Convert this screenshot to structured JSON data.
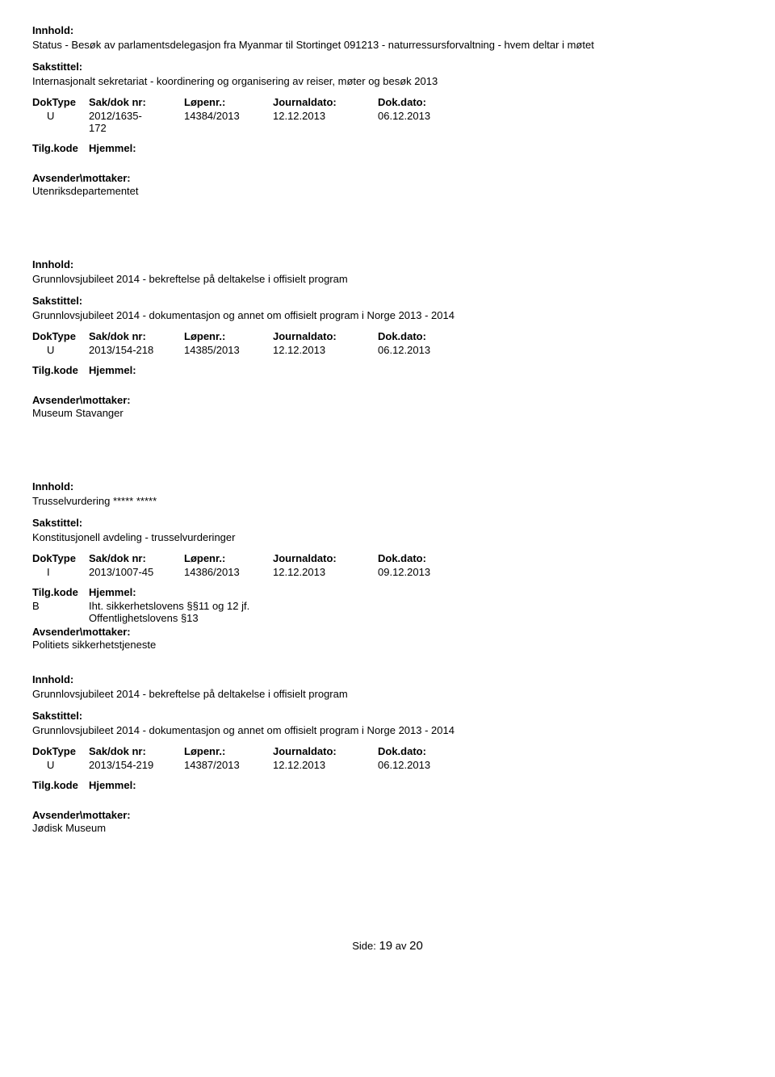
{
  "labels": {
    "innhold": "Innhold:",
    "sakstittel": "Sakstittel:",
    "doktype": "DokType",
    "saknr": "Sak/dok nr:",
    "lopenr": "Løpenr.:",
    "journaldato": "Journaldato:",
    "dokdato": "Dok.dato:",
    "tilgkode": "Tilg.kode",
    "hjemmel": "Hjemmel:",
    "avsender": "Avsender\\mottaker:"
  },
  "records": [
    {
      "innhold": "Status - Besøk av parlamentsdelegasjon fra Myanmar til Stortinget 091213 - naturressursforvaltning - hvem deltar i møtet",
      "sakstittel": "Internasjonalt sekretariat - koordinering og organisering av reiser, møter og besøk 2013",
      "doktype": "U",
      "saknr": "2012/1635-172",
      "saknr_multiline": true,
      "lopenr": "14384/2013",
      "journaldato": "12.12.2013",
      "dokdato": "06.12.2013",
      "hjemmel_code": "",
      "hjemmel_text": "",
      "avsender": "Utenriksdepartementet",
      "show_separator_after": true
    },
    {
      "innhold": "Grunnlovsjubileet 2014 - bekreftelse på deltakelse i offisielt program",
      "sakstittel": "Grunnlovsjubileet 2014 - dokumentasjon og annet om offisielt program i Norge 2013 - 2014",
      "doktype": "U",
      "saknr": "2013/154-218",
      "saknr_multiline": false,
      "lopenr": "14385/2013",
      "journaldato": "12.12.2013",
      "dokdato": "06.12.2013",
      "hjemmel_code": "",
      "hjemmel_text": "",
      "avsender": "Museum Stavanger",
      "show_separator_after": true
    },
    {
      "innhold": "Trusselvurdering ***** *****",
      "sakstittel": "Konstitusjonell avdeling - trusselvurderinger",
      "doktype": "I",
      "saknr": "2013/1007-45",
      "saknr_multiline": false,
      "lopenr": "14386/2013",
      "journaldato": "12.12.2013",
      "dokdato": "09.12.2013",
      "hjemmel_code": "B",
      "hjemmel_text": "Iht. sikkerhetslovens §§11 og 12 jf. Offentlighetslovens §13",
      "hjemmel_text_lines": [
        "Iht. sikkerhetslovens §§11 og 12 jf.",
        "Offentlighetslovens §13"
      ],
      "avsender": "Politiets sikkerhetstjeneste",
      "show_separator_after": false,
      "avsender_margin_small": true
    },
    {
      "innhold": "Grunnlovsjubileet 2014 - bekreftelse på deltakelse i offisielt program",
      "sakstittel": "Grunnlovsjubileet 2014 - dokumentasjon og annet om offisielt program i Norge 2013 - 2014",
      "doktype": "U",
      "saknr": "2013/154-219",
      "saknr_multiline": false,
      "lopenr": "14387/2013",
      "journaldato": "12.12.2013",
      "dokdato": "06.12.2013",
      "hjemmel_code": "",
      "hjemmel_text": "",
      "avsender": "Jødisk Museum",
      "show_separator_after": false
    }
  ],
  "footer": {
    "label": "Side:",
    "page": "19",
    "of": "av",
    "total": "20"
  }
}
